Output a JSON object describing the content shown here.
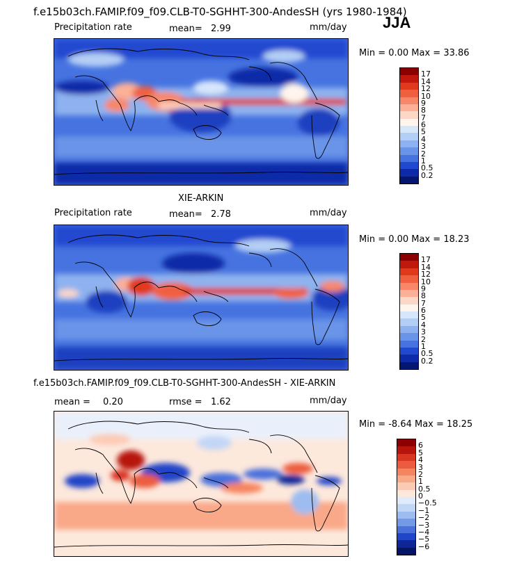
{
  "title": "f.e15b03ch.FAMIP.f09_f09.CLB-T0-SGHHT-300-AndesSH (yrs 1980-1984)",
  "season": "JJA",
  "panels": [
    {
      "heading": "",
      "variable": "Precipitation rate",
      "mean_label": "mean=",
      "mean_value": "2.99",
      "units": "mm/day",
      "minmax": "Min =    0.00  Max =   33.86",
      "colorbar": {
        "labels": [
          "17",
          "14",
          "12",
          "10",
          "9",
          "8",
          "7",
          "6",
          "5",
          "4",
          "3",
          "2",
          "1",
          "0.5",
          "0.2"
        ],
        "colors": [
          "#8b0000",
          "#c0180c",
          "#e03a1c",
          "#f06040",
          "#f8876a",
          "#fbb097",
          "#fdd7c6",
          "#fff5ec",
          "#d6e6fb",
          "#b4cff5",
          "#8eb2ef",
          "#6a94e8",
          "#4673e0",
          "#2149d0",
          "#0f2aa8",
          "#051670"
        ]
      }
    },
    {
      "heading": "XIE-ARKIN",
      "variable": "Precipitation rate",
      "mean_label": "mean=",
      "mean_value": "2.78",
      "units": "mm/day",
      "minmax": "Min =    0.00  Max =   18.23",
      "colorbar": {
        "labels": [
          "17",
          "14",
          "12",
          "10",
          "9",
          "8",
          "7",
          "6",
          "5",
          "4",
          "3",
          "2",
          "1",
          "0.5",
          "0.2"
        ],
        "colors": [
          "#8b0000",
          "#c0180c",
          "#e03a1c",
          "#f06040",
          "#f8876a",
          "#fbb097",
          "#fdd7c6",
          "#fff5ec",
          "#d6e6fb",
          "#b4cff5",
          "#8eb2ef",
          "#6a94e8",
          "#4673e0",
          "#2149d0",
          "#0f2aa8",
          "#051670"
        ]
      }
    },
    {
      "heading": "f.e15b03ch.FAMIP.f09_f09.CLB-T0-SGHHT-300-AndesSH - XIE-ARKIN",
      "mean_label": "mean =",
      "mean_value": "0.20",
      "rmse_label": "rmse =",
      "rmse_value": "1.62",
      "units": "mm/day",
      "minmax": "Min =  -8.64  Max =   18.25",
      "colorbar": {
        "labels": [
          "6",
          "5",
          "4",
          "3",
          "2",
          "1",
          "0.5",
          "0",
          "−0.5",
          "−1",
          "−2",
          "−3",
          "−4",
          "−5",
          "−6"
        ],
        "colors": [
          "#8b0000",
          "#b7150c",
          "#d93622",
          "#ec5b3d",
          "#f5845f",
          "#f9a888",
          "#fccab4",
          "#fde8dc",
          "#dfeafb",
          "#c2d6f6",
          "#9dbcf0",
          "#7499e6",
          "#4a70dc",
          "#2145c8",
          "#0e2696",
          "#051565"
        ]
      }
    }
  ]
}
